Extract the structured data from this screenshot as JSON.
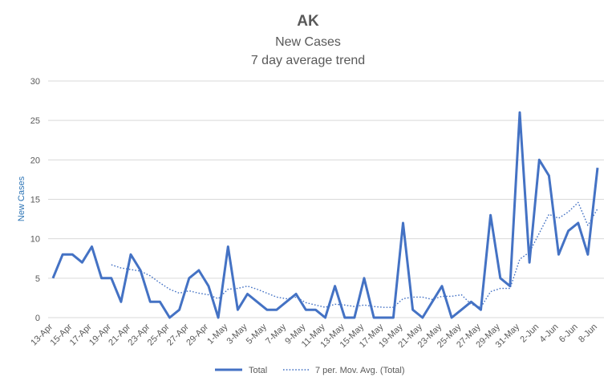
{
  "chart_data": {
    "type": "line",
    "title": "AK",
    "subtitle_lines": [
      "New Cases",
      "7 day average trend"
    ],
    "ylabel": "New Cases",
    "xlabel": "",
    "ylim": [
      0,
      30
    ],
    "yticks": [
      0,
      5,
      10,
      15,
      20,
      25,
      30
    ],
    "grid": true,
    "legend_position": "bottom",
    "x_tick_labels": [
      "13-Apr",
      "15-Apr",
      "17-Apr",
      "19-Apr",
      "21-Apr",
      "23-Apr",
      "25-Apr",
      "27-Apr",
      "29-Apr",
      "1-May",
      "3-May",
      "5-May",
      "7-May",
      "9-May",
      "11-May",
      "13-May",
      "15-May",
      "17-May",
      "19-May",
      "21-May",
      "23-May",
      "25-May",
      "27-May",
      "29-May",
      "31-May",
      "2-Jun",
      "4-Jun",
      "6-Jun",
      "8-Jun"
    ],
    "x": [
      "13-Apr",
      "14-Apr",
      "15-Apr",
      "16-Apr",
      "17-Apr",
      "18-Apr",
      "19-Apr",
      "20-Apr",
      "21-Apr",
      "22-Apr",
      "23-Apr",
      "24-Apr",
      "25-Apr",
      "26-Apr",
      "27-Apr",
      "28-Apr",
      "29-Apr",
      "30-Apr",
      "1-May",
      "2-May",
      "3-May",
      "4-May",
      "5-May",
      "6-May",
      "7-May",
      "8-May",
      "9-May",
      "10-May",
      "11-May",
      "12-May",
      "13-May",
      "14-May",
      "15-May",
      "16-May",
      "17-May",
      "18-May",
      "19-May",
      "20-May",
      "21-May",
      "22-May",
      "23-May",
      "24-May",
      "25-May",
      "26-May",
      "27-May",
      "28-May",
      "29-May",
      "30-May",
      "31-May",
      "1-Jun",
      "2-Jun",
      "3-Jun",
      "4-Jun",
      "5-Jun",
      "6-Jun",
      "7-Jun",
      "8-Jun"
    ],
    "series": [
      {
        "name": "Total",
        "style": "solid",
        "color": "#4472c4",
        "values": [
          5,
          8,
          8,
          7,
          9,
          5,
          5,
          2,
          8,
          6,
          2,
          2,
          0,
          1,
          5,
          6,
          4,
          0,
          9,
          1,
          3,
          2,
          1,
          1,
          2,
          3,
          1,
          1,
          0,
          4,
          0,
          0,
          5,
          0,
          0,
          0,
          12,
          1,
          0,
          2,
          4,
          0,
          1,
          2,
          1,
          13,
          5,
          4,
          26,
          7,
          20,
          18,
          8,
          11,
          12,
          8,
          19
        ]
      },
      {
        "name": "7 per. Mov. Avg. (Total)",
        "style": "dotted",
        "color": "#4472c4",
        "values": [
          null,
          null,
          null,
          null,
          null,
          null,
          6.7,
          6.3,
          6.1,
          5.9,
          5.3,
          4.4,
          3.6,
          3.1,
          3.4,
          3.1,
          2.9,
          2.4,
          3.6,
          3.7,
          4.0,
          3.6,
          3.1,
          2.6,
          2.4,
          2.6,
          1.9,
          1.6,
          1.3,
          1.7,
          1.6,
          1.4,
          1.6,
          1.4,
          1.3,
          1.3,
          2.4,
          2.6,
          2.6,
          2.3,
          2.7,
          2.7,
          2.9,
          1.7,
          1.3,
          3.3,
          3.7,
          3.7,
          7.4,
          8.3,
          10.7,
          13.1,
          12.6,
          13.4,
          14.6,
          11.7,
          13.8
        ]
      }
    ]
  }
}
